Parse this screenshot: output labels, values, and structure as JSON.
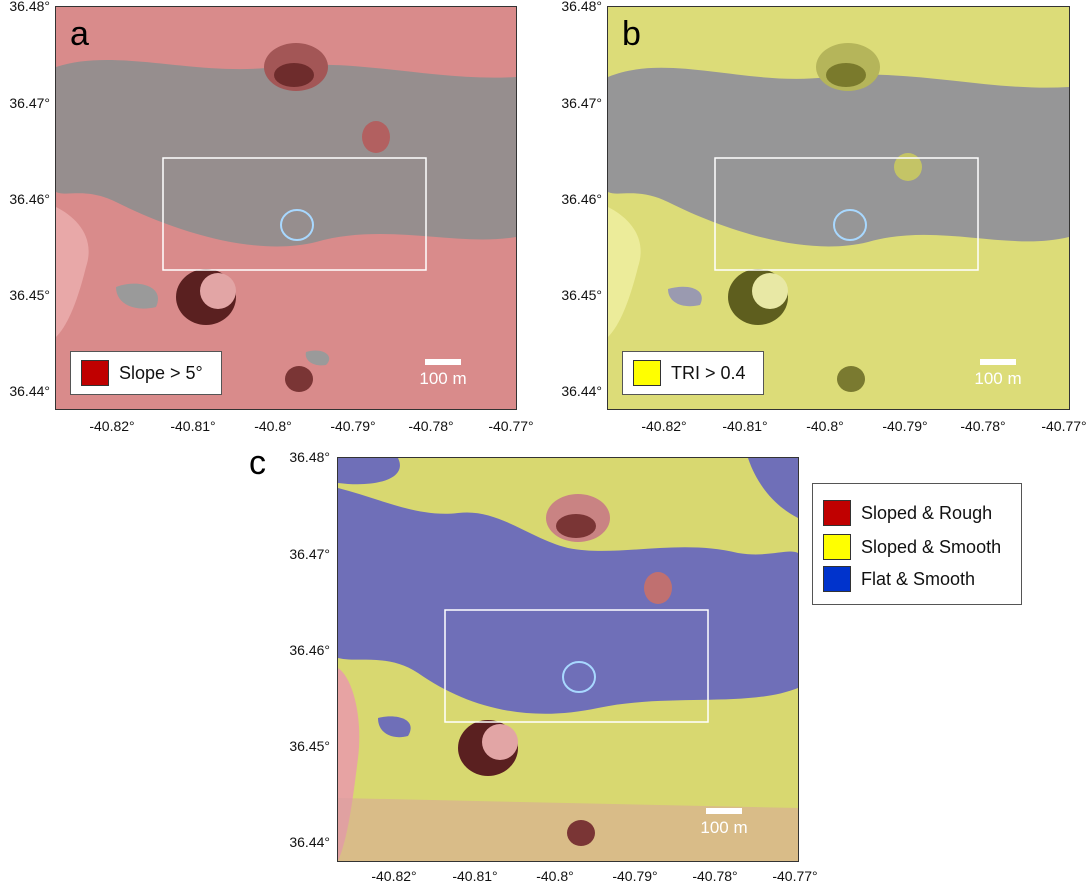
{
  "panels": {
    "a": {
      "letter": "a",
      "legend_label": "Slope > 5°",
      "legend_color": "#c00000",
      "overlay_color": "#d97a7a",
      "scale_label": "100 m"
    },
    "b": {
      "letter": "b",
      "legend_label": "TRI > 0.4",
      "legend_color": "#ffff00",
      "overlay_color": "#e4e47a",
      "scale_label": "100 m"
    },
    "c": {
      "letter": "c",
      "scale_label": "100 m",
      "legend": [
        {
          "label": "Sloped & Rough",
          "color": "#c00000"
        },
        {
          "label": "Sloped & Smooth",
          "color": "#ffff00"
        },
        {
          "label": "Flat & Smooth",
          "color": "#0033cc"
        }
      ]
    }
  },
  "axes": {
    "y_ticks": [
      "36.48°",
      "36.47°",
      "36.46°",
      "36.45°",
      "36.44°"
    ],
    "x_ticks": [
      "-40.82°",
      "-40.81°",
      "-40.8°",
      "-40.79°",
      "-40.78°",
      "-40.77°"
    ]
  },
  "colors": {
    "terrain_gray": "#8e8e8e",
    "flat_blue": "#6f6fb8",
    "study_box": "#ffffff",
    "landing_ellipse": "#a8d8ff"
  }
}
